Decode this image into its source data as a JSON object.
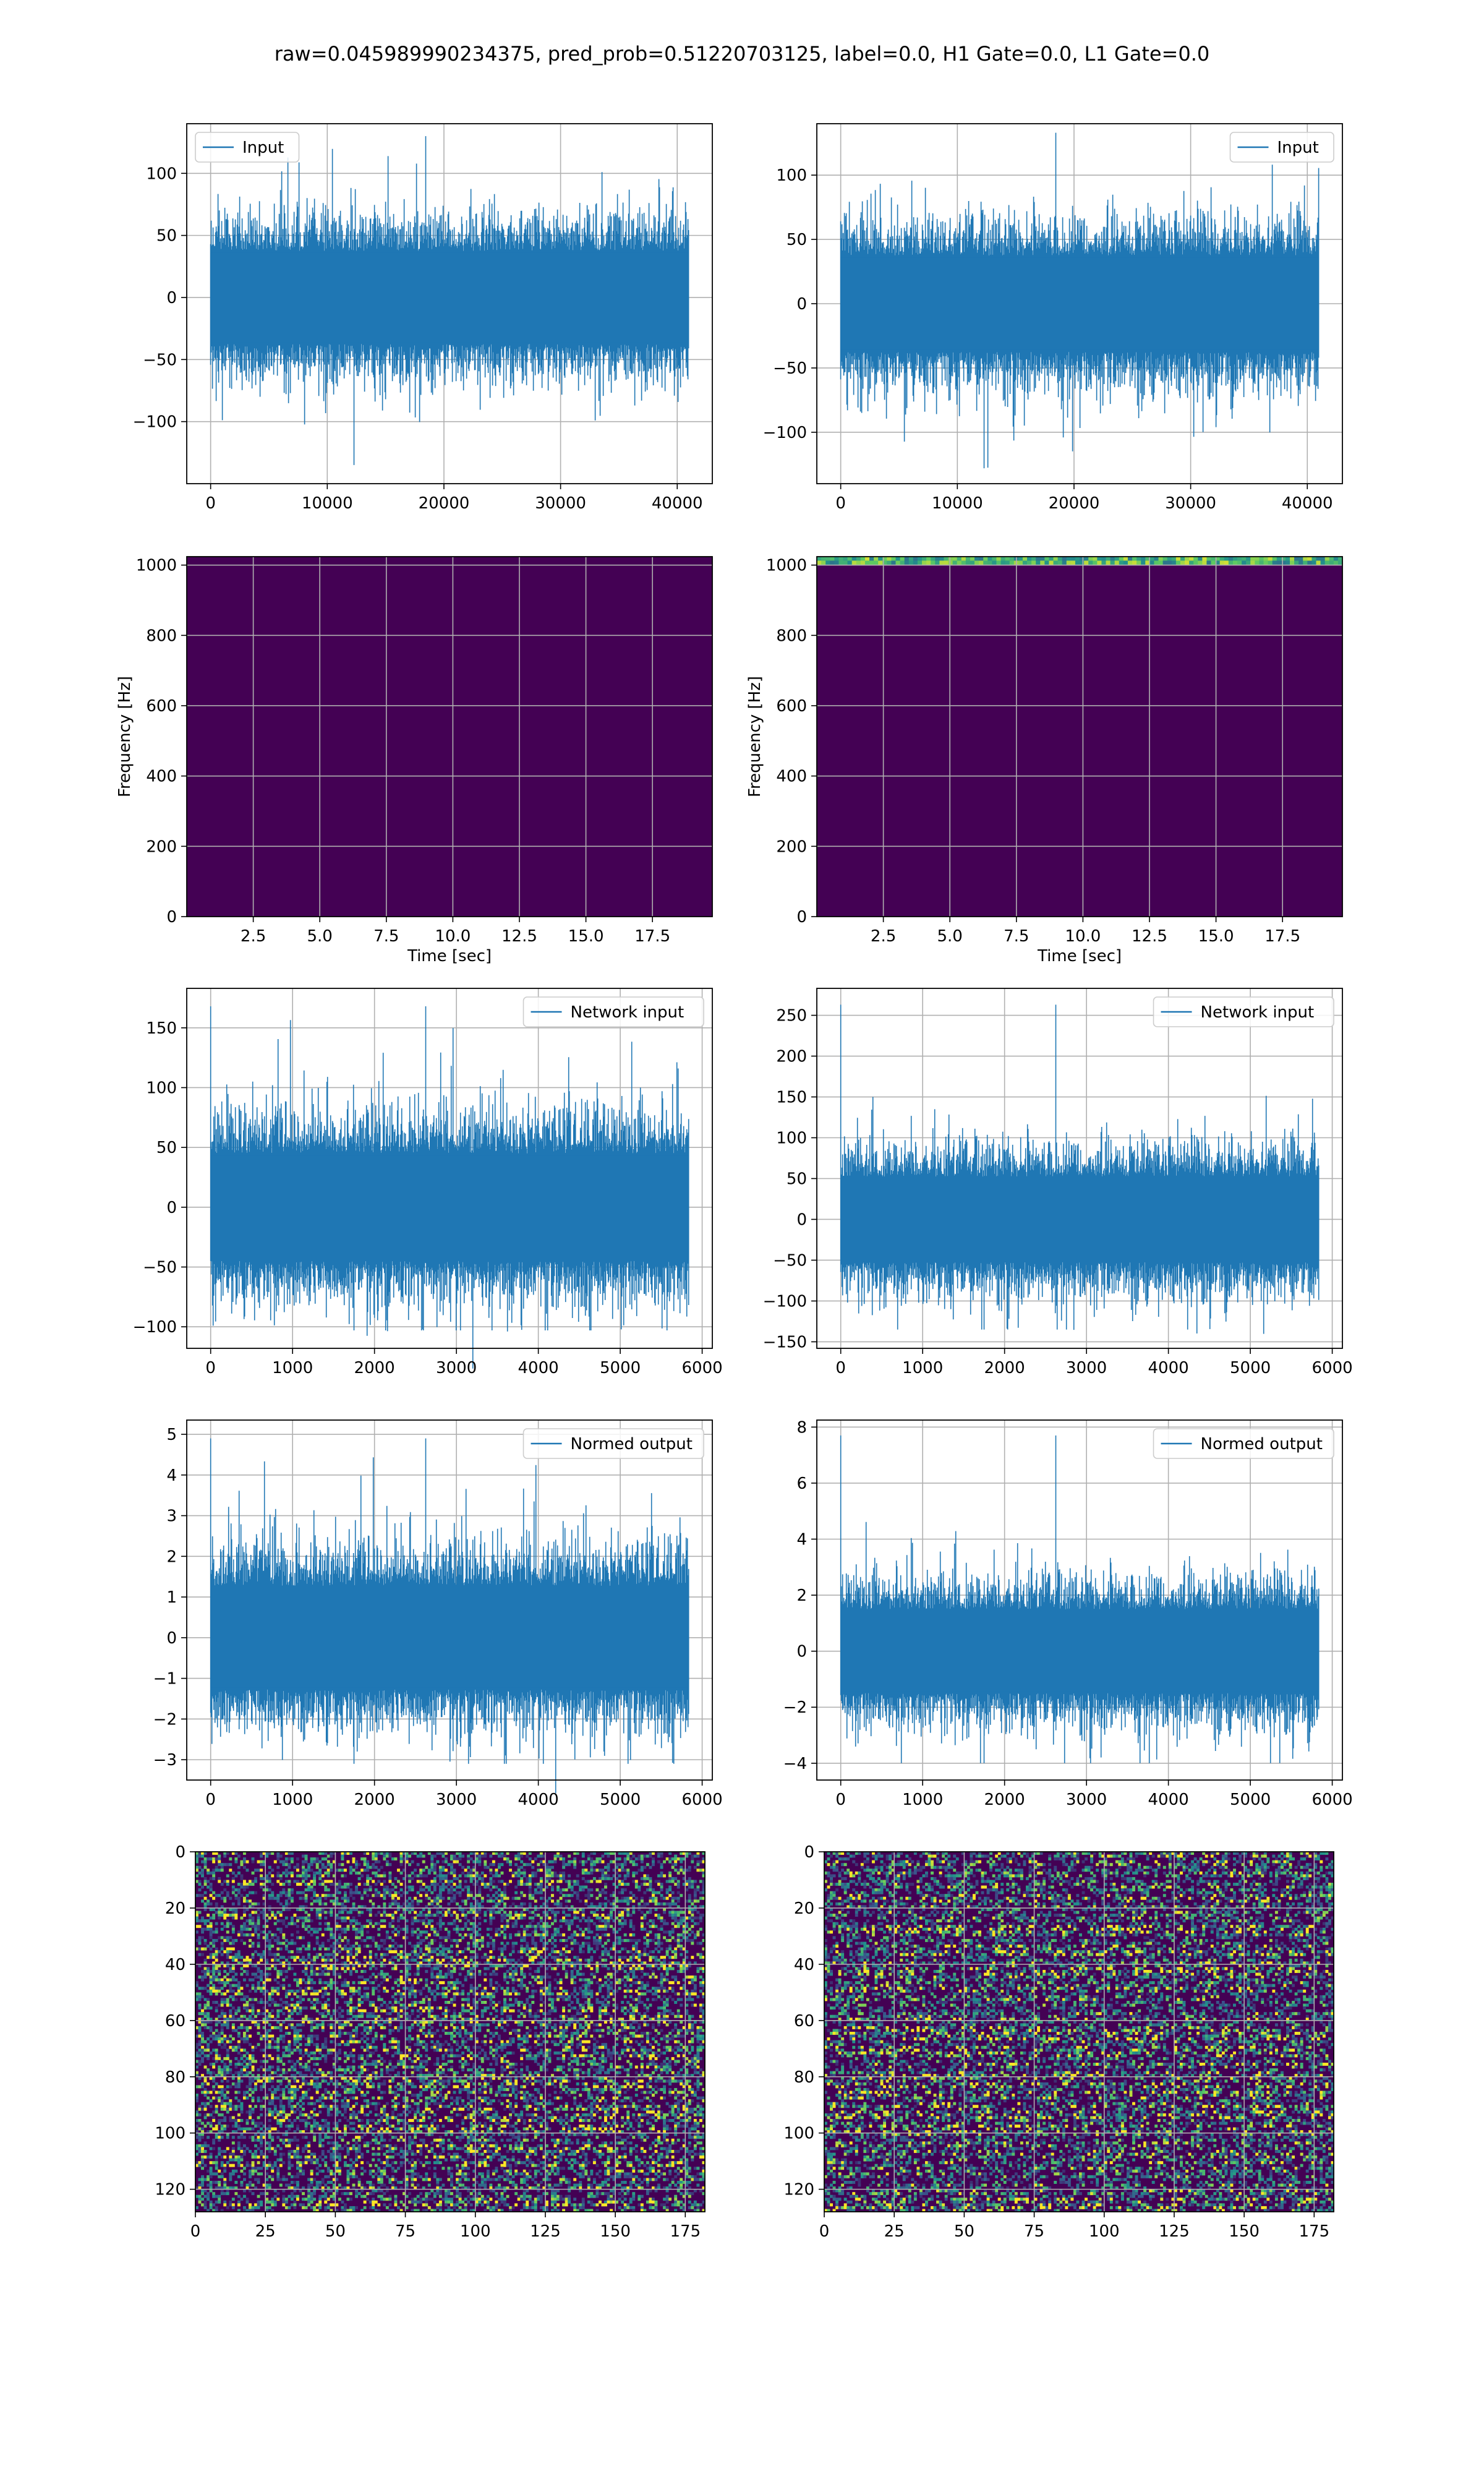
{
  "suptitle": "raw=0.045989990234375, pred_prob=0.51220703125, label=0.0, H1 Gate=0.0, L1 Gate=0.0",
  "colors": {
    "line": "#1f77b4",
    "grid": "#b0b0b0",
    "axes": "#000000"
  },
  "chart_data": [
    {
      "id": "left-input",
      "type": "line",
      "legend": "Input",
      "legend_loc": "upper left",
      "xlim": [
        -2048,
        43008
      ],
      "ylim": [
        -150,
        140
      ],
      "xticks": [
        "0",
        "10000",
        "20000",
        "30000",
        "40000"
      ],
      "yticks": [
        "100",
        "50",
        "0",
        "−50",
        "−100"
      ],
      "series": [
        {
          "name": "Input",
          "x_range": [
            0,
            40960
          ],
          "amplitude_typical": 50,
          "amplitude_max": 130,
          "min": -135,
          "max": 130
        }
      ]
    },
    {
      "id": "right-input",
      "type": "line",
      "legend": "Input",
      "legend_loc": "upper right",
      "xlim": [
        -2048,
        43008
      ],
      "ylim": [
        -140,
        140
      ],
      "xticks": [
        "0",
        "10000",
        "20000",
        "30000",
        "40000"
      ],
      "yticks": [
        "100",
        "50",
        "0",
        "−50",
        "−100"
      ],
      "series": [
        {
          "name": "Input",
          "x_range": [
            0,
            40960
          ],
          "amplitude_typical": 50,
          "amplitude_max": 130,
          "min": -128,
          "max": 133
        }
      ]
    },
    {
      "id": "left-spectrogram",
      "type": "heatmap",
      "colormap": "viridis",
      "xlabel": "Time [sec]",
      "ylabel": "Frequency [Hz]",
      "xlim": [
        0,
        19.75
      ],
      "ylim": [
        0,
        1024
      ],
      "xticks": [
        "2.5",
        "5.0",
        "7.5",
        "10.0",
        "12.5",
        "15.0",
        "17.5"
      ],
      "yticks": [
        "0",
        "200",
        "400",
        "600",
        "800",
        "1000"
      ]
    },
    {
      "id": "right-spectrogram",
      "type": "heatmap",
      "colormap": "viridis",
      "xlabel": "Time [sec]",
      "ylabel": "Frequency [Hz]",
      "xlim": [
        0,
        19.75
      ],
      "ylim": [
        0,
        1024
      ],
      "xticks": [
        "2.5",
        "5.0",
        "7.5",
        "10.0",
        "12.5",
        "15.0",
        "17.5"
      ],
      "yticks": [
        "0",
        "200",
        "400",
        "600",
        "800",
        "1000"
      ]
    },
    {
      "id": "left-network-input",
      "type": "line",
      "legend": "Network input",
      "legend_loc": "upper right",
      "xlim": [
        -292,
        6124
      ],
      "ylim": [
        -118,
        183
      ],
      "xticks": [
        "0",
        "1000",
        "2000",
        "3000",
        "4000",
        "5000",
        "6000"
      ],
      "yticks": [
        "150",
        "100",
        "50",
        "0",
        "−50",
        "−100"
      ],
      "series": [
        {
          "name": "Network input",
          "x_range": [
            0,
            5832
          ],
          "amplitude_typical": 60,
          "spike": {
            "x": 0,
            "y": 168
          },
          "min": -103,
          "max": 168
        }
      ]
    },
    {
      "id": "right-network-input",
      "type": "line",
      "legend": "Network input",
      "legend_loc": "upper right",
      "xlim": [
        -292,
        6124
      ],
      "ylim": [
        -158,
        283
      ],
      "xticks": [
        "0",
        "1000",
        "2000",
        "3000",
        "4000",
        "5000",
        "6000"
      ],
      "yticks": [
        "250",
        "200",
        "150",
        "100",
        "50",
        "0",
        "−50",
        "−100",
        "−150"
      ],
      "series": [
        {
          "name": "Network input",
          "x_range": [
            0,
            5832
          ],
          "amplitude_typical": 70,
          "spike": {
            "x": 0,
            "y": 263
          },
          "min": -135,
          "max": 263
        }
      ]
    },
    {
      "id": "left-normed-output",
      "type": "line",
      "legend": "Normed output",
      "legend_loc": "upper right",
      "xlim": [
        -292,
        6124
      ],
      "ylim": [
        -3.5,
        5.35
      ],
      "xticks": [
        "0",
        "1000",
        "2000",
        "3000",
        "4000",
        "5000",
        "6000"
      ],
      "yticks": [
        "5",
        "4",
        "3",
        "2",
        "1",
        "0",
        "−1",
        "−2",
        "−3"
      ],
      "series": [
        {
          "name": "Normed output",
          "x_range": [
            0,
            5832
          ],
          "amplitude_typical": 1.7,
          "spike": {
            "x": 0,
            "y": 4.9
          },
          "min": -3.1,
          "max": 4.9
        }
      ]
    },
    {
      "id": "right-normed-output",
      "type": "line",
      "legend": "Normed output",
      "legend_loc": "upper right",
      "xlim": [
        -292,
        6124
      ],
      "ylim": [
        -4.6,
        8.25
      ],
      "xticks": [
        "0",
        "1000",
        "2000",
        "3000",
        "4000",
        "5000",
        "6000"
      ],
      "yticks": [
        "8",
        "6",
        "4",
        "2",
        "0",
        "−2",
        "−4"
      ],
      "series": [
        {
          "name": "Normed output",
          "x_range": [
            0,
            5832
          ],
          "amplitude_typical": 2.0,
          "spike": {
            "x": 0,
            "y": 7.7
          },
          "min": -4.0,
          "max": 7.7
        }
      ]
    },
    {
      "id": "left-feature-map",
      "type": "heatmap",
      "colormap": "viridis",
      "rows": 128,
      "cols": 182,
      "xlim": [
        0,
        182
      ],
      "ylim": [
        128,
        0
      ],
      "xticks": [
        "0",
        "25",
        "50",
        "75",
        "100",
        "125",
        "150",
        "175"
      ],
      "yticks": [
        "0",
        "20",
        "40",
        "60",
        "80",
        "100",
        "120"
      ]
    },
    {
      "id": "right-feature-map",
      "type": "heatmap",
      "colormap": "viridis",
      "rows": 128,
      "cols": 182,
      "xlim": [
        0,
        182
      ],
      "ylim": [
        128,
        0
      ],
      "xticks": [
        "0",
        "25",
        "50",
        "75",
        "100",
        "125",
        "150",
        "175"
      ],
      "yticks": [
        "0",
        "20",
        "40",
        "60",
        "80",
        "100",
        "120"
      ]
    }
  ]
}
